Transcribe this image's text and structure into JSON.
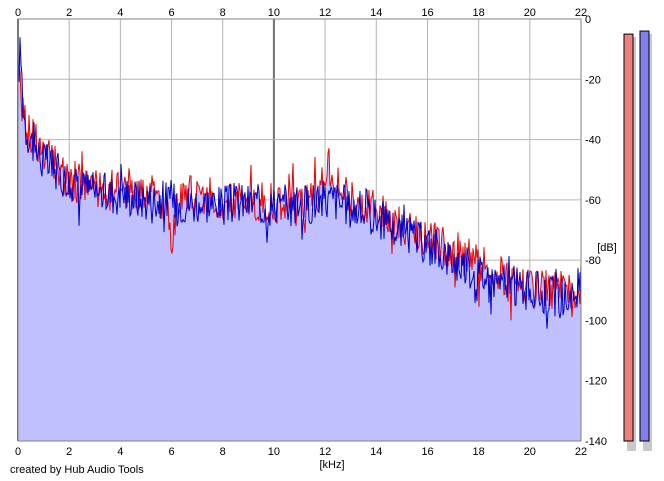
{
  "credit": "created by Hub Audio Tools",
  "chart_data": {
    "type": "line",
    "xlabel": "[kHz]",
    "ylabel": "[dB]",
    "xlim": [
      0,
      22
    ],
    "ylim": [
      -140,
      0
    ],
    "x_ticks": [
      "0",
      "2",
      "4",
      "6",
      "8",
      "10",
      "12",
      "14",
      "16",
      "18",
      "20",
      "22"
    ],
    "y_ticks": [
      "0",
      "-20",
      "-40",
      "-60",
      "-80",
      "-100",
      "-120",
      "-140"
    ],
    "grid": true,
    "fill_to_bottom": true,
    "colors": {
      "fill": "#c0c0ff",
      "red_series": "#ee0000",
      "blue_series": "#0000cc",
      "grid": "#b4b4b4",
      "meter_red": "#f08080",
      "meter_blue": "#8080f0"
    },
    "series": [
      {
        "color": "#ee0000",
        "x": [
          0,
          0.1,
          0.2,
          0.3,
          0.5,
          0.7,
          0.9,
          1.1,
          1.4,
          1.7,
          2,
          2.5,
          3,
          3.5,
          4,
          4.5,
          5,
          5.5,
          5.9,
          6,
          6.1,
          6.5,
          7,
          7.5,
          8,
          8.5,
          9,
          9.5,
          10,
          10.5,
          11,
          11.5,
          12,
          12.1,
          12.4,
          12.8,
          13,
          13.5,
          14,
          14.5,
          15,
          15.5,
          16,
          16.5,
          17,
          17.5,
          18,
          18.5,
          19,
          19.5,
          20,
          20.5,
          21,
          21.5,
          21.8,
          22
        ],
        "y": [
          -20,
          -25,
          -30,
          -34,
          -38,
          -40,
          -43,
          -46,
          -48,
          -51,
          -53,
          -55,
          -56,
          -57,
          -57,
          -58,
          -58,
          -59,
          -63,
          -80,
          -62,
          -58,
          -59,
          -59,
          -60,
          -60,
          -61,
          -61,
          -61,
          -62,
          -62,
          -60,
          -53,
          -46,
          -54,
          -58,
          -60,
          -62,
          -64,
          -66,
          -69,
          -71,
          -73,
          -75,
          -76,
          -79,
          -81,
          -84,
          -86,
          -87,
          -88,
          -89,
          -90,
          -91,
          -98,
          -87
        ]
      },
      {
        "color": "#0000cc",
        "x": [
          0,
          0.1,
          0.2,
          0.3,
          0.5,
          0.7,
          0.9,
          1.1,
          1.4,
          1.7,
          2,
          2.5,
          3,
          3.5,
          4,
          4.5,
          5,
          5.5,
          6,
          6.5,
          7,
          7.5,
          8,
          8.5,
          9,
          9.5,
          10,
          10.5,
          11,
          11.5,
          12,
          12.4,
          12.8,
          13,
          13.5,
          14,
          14.5,
          15,
          15.5,
          16,
          16.5,
          17,
          17.5,
          18,
          18.5,
          19,
          19.5,
          20,
          20.5,
          21,
          21.5,
          21.8,
          22
        ],
        "y": [
          -18,
          -10,
          -28,
          -36,
          -40,
          -43,
          -46,
          -48,
          -50,
          -52,
          -54,
          -56,
          -57,
          -58,
          -58,
          -59,
          -60,
          -60,
          -60,
          -61,
          -61,
          -61,
          -62,
          -61,
          -61,
          -62,
          -62,
          -63,
          -62,
          -61,
          -60,
          -60,
          -62,
          -63,
          -64,
          -66,
          -68,
          -71,
          -73,
          -75,
          -77,
          -80,
          -82,
          -84,
          -86,
          -88,
          -89,
          -90,
          -91,
          -92,
          -93,
          -90,
          -88
        ]
      }
    ]
  },
  "meters": [
    {
      "color": "#f08080",
      "level_db": -5
    },
    {
      "color": "#8080f0",
      "level_db": -4
    }
  ]
}
